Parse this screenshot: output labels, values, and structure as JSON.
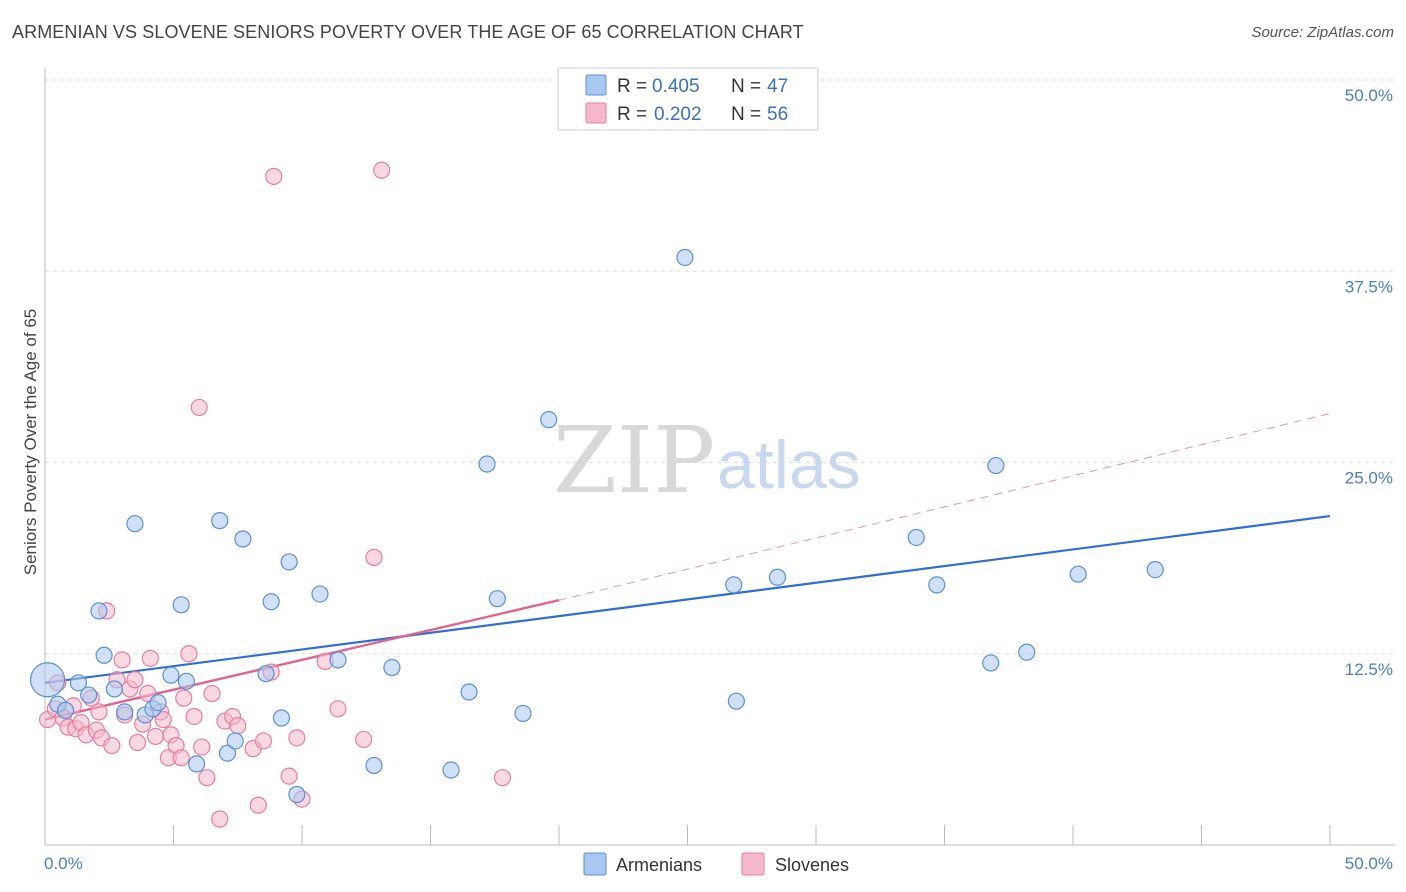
{
  "title": "ARMENIAN VS SLOVENE SENIORS POVERTY OVER THE AGE OF 65 CORRELATION CHART",
  "source": "Source: ZipAtlas.com",
  "watermark": {
    "zip": "ZIP",
    "atlas": "atlas"
  },
  "colors": {
    "armenians_fill": "#a9c8f0",
    "armenians_stroke": "#5b8fd6",
    "armenians_line": "#2f6fd0",
    "slovenes_fill": "#f5b8cb",
    "slovenes_stroke": "#e57ea0",
    "slovenes_line": "#e0648f",
    "tick_label": "#4a7cc9"
  },
  "legend": {
    "rows": [
      {
        "r_label": "R =",
        "r_value": "0.405",
        "n_label": "N =",
        "n_value": "47"
      },
      {
        "r_label": "R =",
        "r_value": "0.202",
        "n_label": "N =",
        "n_value": "56"
      }
    ]
  },
  "chart_data": {
    "type": "scatter",
    "title": "ARMENIAN VS SLOVENE SENIORS POVERTY OVER THE AGE OF 65 CORRELATION CHART",
    "xlabel": "",
    "ylabel": "Seniors Poverty Over the Age of 65",
    "xlim": [
      0,
      50
    ],
    "ylim": [
      0,
      50
    ],
    "x_tick_labels": [
      "0.0%",
      "50.0%"
    ],
    "y_tick_labels": [
      "12.5%",
      "25.0%",
      "37.5%",
      "50.0%"
    ],
    "y_ticks": [
      12.5,
      25,
      37.5,
      50
    ],
    "grid": true,
    "legend_position": "top-center",
    "series": [
      {
        "name": "Armenians",
        "r": 0.405,
        "n": 47,
        "trend": {
          "x": [
            0,
            50
          ],
          "y": [
            10.6,
            21.5
          ],
          "style": "solid"
        },
        "points": [
          [
            0.1,
            10.8
          ],
          [
            0.5,
            9.2
          ],
          [
            0.8,
            8.8
          ],
          [
            1.3,
            10.6
          ],
          [
            1.7,
            9.8
          ],
          [
            2.1,
            15.3
          ],
          [
            2.3,
            12.4
          ],
          [
            2.7,
            10.2
          ],
          [
            3.1,
            8.7
          ],
          [
            3.5,
            21.0
          ],
          [
            3.9,
            8.5
          ],
          [
            4.2,
            8.9
          ],
          [
            4.4,
            9.3
          ],
          [
            4.9,
            11.1
          ],
          [
            5.3,
            15.7
          ],
          [
            5.5,
            10.7
          ],
          [
            5.9,
            5.3
          ],
          [
            6.8,
            21.2
          ],
          [
            7.1,
            6.0
          ],
          [
            7.4,
            6.8
          ],
          [
            7.7,
            20.0
          ],
          [
            8.6,
            11.2
          ],
          [
            8.8,
            15.9
          ],
          [
            9.2,
            8.3
          ],
          [
            9.5,
            18.5
          ],
          [
            9.8,
            3.3
          ],
          [
            10.7,
            16.4
          ],
          [
            11.4,
            12.1
          ],
          [
            12.8,
            5.2
          ],
          [
            13.5,
            11.6
          ],
          [
            15.8,
            4.9
          ],
          [
            16.5,
            10.0
          ],
          [
            17.2,
            24.9
          ],
          [
            17.6,
            16.1
          ],
          [
            18.6,
            8.6
          ],
          [
            19.6,
            27.8
          ],
          [
            24.9,
            38.4
          ],
          [
            26.8,
            17.0
          ],
          [
            26.9,
            9.4
          ],
          [
            28.5,
            17.5
          ],
          [
            33.9,
            20.1
          ],
          [
            34.7,
            17.0
          ],
          [
            36.8,
            11.9
          ],
          [
            37.0,
            24.8
          ],
          [
            38.2,
            12.6
          ],
          [
            40.2,
            17.7
          ],
          [
            43.2,
            18.0
          ]
        ]
      },
      {
        "name": "Slovenes",
        "r": 0.202,
        "n": 56,
        "trend": {
          "x": [
            0,
            20
          ],
          "y": [
            8.2,
            16.0
          ],
          "style": "solid",
          "extension": {
            "x": [
              20,
              50
            ],
            "y": [
              16.0,
              28.2
            ],
            "style": "dashed"
          }
        },
        "points": [
          [
            0.1,
            8.2
          ],
          [
            0.4,
            8.9
          ],
          [
            0.5,
            10.6
          ],
          [
            0.7,
            8.3
          ],
          [
            0.9,
            7.7
          ],
          [
            1.1,
            9.1
          ],
          [
            1.2,
            7.6
          ],
          [
            1.4,
            8.0
          ],
          [
            1.6,
            7.2
          ],
          [
            1.8,
            9.6
          ],
          [
            2.0,
            7.5
          ],
          [
            2.1,
            8.7
          ],
          [
            2.2,
            7.0
          ],
          [
            2.4,
            15.3
          ],
          [
            2.6,
            6.5
          ],
          [
            2.8,
            10.8
          ],
          [
            3.0,
            12.1
          ],
          [
            3.1,
            8.5
          ],
          [
            3.3,
            10.2
          ],
          [
            3.5,
            10.8
          ],
          [
            3.6,
            6.7
          ],
          [
            3.8,
            7.9
          ],
          [
            4.0,
            9.9
          ],
          [
            4.1,
            12.2
          ],
          [
            4.3,
            7.1
          ],
          [
            4.5,
            8.7
          ],
          [
            4.6,
            8.2
          ],
          [
            4.8,
            5.7
          ],
          [
            4.9,
            7.2
          ],
          [
            5.1,
            6.5
          ],
          [
            5.3,
            5.7
          ],
          [
            5.4,
            9.6
          ],
          [
            5.6,
            12.5
          ],
          [
            5.8,
            8.4
          ],
          [
            6.0,
            28.6
          ],
          [
            6.1,
            6.4
          ],
          [
            6.3,
            4.4
          ],
          [
            6.5,
            9.9
          ],
          [
            6.8,
            1.7
          ],
          [
            7.0,
            8.1
          ],
          [
            7.3,
            8.4
          ],
          [
            7.5,
            7.8
          ],
          [
            8.1,
            6.3
          ],
          [
            8.3,
            2.6
          ],
          [
            8.5,
            6.8
          ],
          [
            8.8,
            11.3
          ],
          [
            8.9,
            43.7
          ],
          [
            9.5,
            4.5
          ],
          [
            9.8,
            7.0
          ],
          [
            10.0,
            3.0
          ],
          [
            10.9,
            12.0
          ],
          [
            11.4,
            8.9
          ],
          [
            12.4,
            6.9
          ],
          [
            12.8,
            18.8
          ],
          [
            13.1,
            44.1
          ],
          [
            17.8,
            4.4
          ]
        ]
      }
    ]
  },
  "bottom_legend": {
    "items": [
      {
        "label": "Armenians"
      },
      {
        "label": "Slovenes"
      }
    ]
  }
}
